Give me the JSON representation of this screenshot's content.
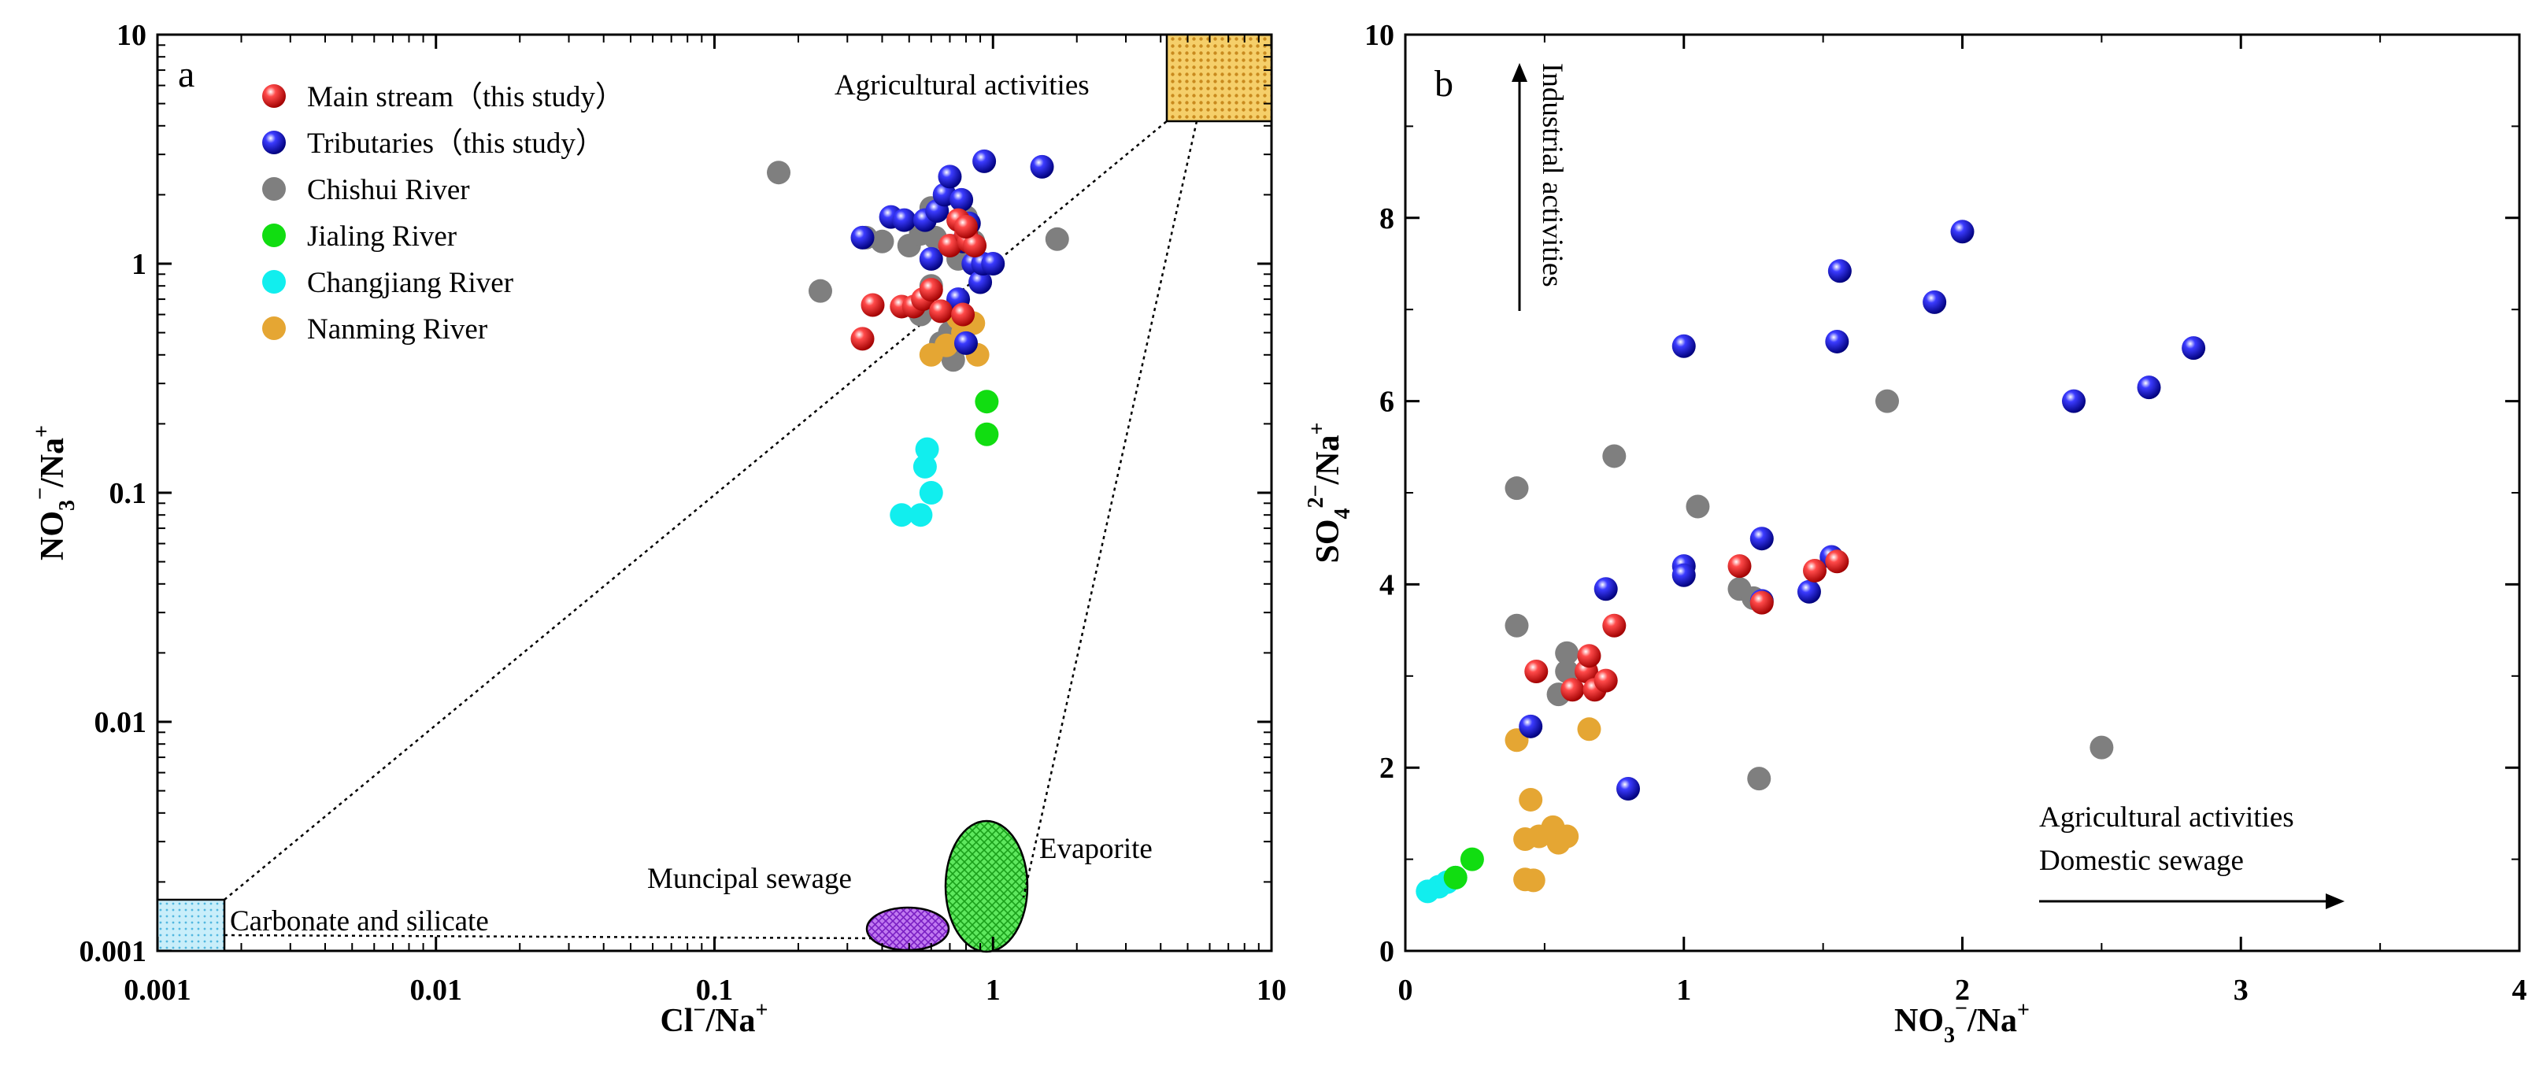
{
  "chart_data": [
    {
      "type": "scatter",
      "panel_label": "a",
      "xscale": "log",
      "yscale": "log",
      "xlim": [
        0.001,
        10
      ],
      "ylim": [
        0.001,
        10
      ],
      "xlabel": {
        "main": "Cl",
        "sup": "−",
        "sep": "/Na",
        "sup2": "+"
      },
      "ylabel": {
        "main": "NO",
        "sub": "3",
        "sup": "−",
        "sep": "/Na",
        "sup2": "+"
      },
      "xticks": [
        {
          "v": 0.001,
          "label": "0.001"
        },
        {
          "v": 0.01,
          "label": "0.01"
        },
        {
          "v": 0.1,
          "label": "0.1"
        },
        {
          "v": 1,
          "label": "1"
        },
        {
          "v": 10,
          "label": "10"
        }
      ],
      "yticks": [
        {
          "v": 0.001,
          "label": "0.001"
        },
        {
          "v": 0.01,
          "label": "0.01"
        },
        {
          "v": 0.1,
          "label": "0.1"
        },
        {
          "v": 1,
          "label": "1"
        },
        {
          "v": 10,
          "label": "10"
        }
      ],
      "legend": [
        {
          "key": "main",
          "label": "Main stream（this study）",
          "color": "#ee1111"
        },
        {
          "key": "trib",
          "label": "Tributaries（this study）",
          "color": "#1515d8"
        },
        {
          "key": "chishui",
          "label": "Chishui River",
          "color": "#7f7f7f"
        },
        {
          "key": "jialing",
          "label": "Jialing River",
          "color": "#11dd11"
        },
        {
          "key": "changjiang",
          "label": "Changjiang River",
          "color": "#11eeee"
        },
        {
          "key": "nanming",
          "label": "Nanming River",
          "color": "#e5a633"
        }
      ],
      "end_members": [
        {
          "label": "Agricultural activities",
          "color": "#f0c050"
        },
        {
          "label": "Carbonate and silicate",
          "color": "#aee4f5"
        },
        {
          "label": "Muncipal sewage",
          "color": "#a044e8"
        },
        {
          "label": "Evaporite",
          "color": "#33dd33"
        }
      ],
      "series": [
        {
          "key": "chishui",
          "points": [
            [
              0.17,
              2.5
            ],
            [
              0.24,
              0.76
            ],
            [
              0.35,
              1.3
            ],
            [
              0.4,
              1.25
            ],
            [
              0.5,
              1.2
            ],
            [
              0.55,
              1.35
            ],
            [
              0.6,
              1.75
            ],
            [
              0.62,
              1.3
            ],
            [
              0.6,
              0.8
            ],
            [
              0.55,
              0.6
            ],
            [
              0.7,
              0.5
            ],
            [
              0.72,
              0.38
            ],
            [
              0.65,
              0.45
            ],
            [
              0.75,
              1.05
            ],
            [
              0.8,
              1.6
            ],
            [
              0.85,
              1.25
            ],
            [
              1.7,
              1.28
            ]
          ]
        },
        {
          "key": "nanming",
          "points": [
            [
              0.6,
              0.4
            ],
            [
              0.68,
              0.44
            ],
            [
              0.78,
              0.5
            ],
            [
              0.85,
              0.55
            ],
            [
              0.75,
              0.58
            ],
            [
              0.88,
              0.4
            ]
          ]
        },
        {
          "key": "changjiang",
          "points": [
            [
              0.47,
              0.08
            ],
            [
              0.55,
              0.08
            ],
            [
              0.6,
              0.1
            ],
            [
              0.57,
              0.13
            ],
            [
              0.58,
              0.155
            ]
          ]
        },
        {
          "key": "jialing",
          "points": [
            [
              0.95,
              0.25
            ],
            [
              0.95,
              0.18
            ]
          ]
        },
        {
          "key": "trib",
          "points": [
            [
              0.34,
              1.3
            ],
            [
              0.43,
              1.6
            ],
            [
              0.48,
              1.55
            ],
            [
              0.57,
              1.55
            ],
            [
              0.6,
              1.05
            ],
            [
              0.63,
              1.7
            ],
            [
              0.67,
              2.0
            ],
            [
              0.7,
              2.4
            ],
            [
              0.77,
              1.9
            ],
            [
              0.82,
              1.5
            ],
            [
              0.78,
              1.25
            ],
            [
              0.85,
              1.0
            ],
            [
              0.9,
              0.83
            ],
            [
              0.92,
              1.0
            ],
            [
              1.0,
              1.0
            ],
            [
              0.93,
              2.8
            ],
            [
              1.5,
              2.65
            ],
            [
              0.8,
              0.45
            ],
            [
              0.75,
              0.7
            ]
          ]
        },
        {
          "key": "main",
          "points": [
            [
              0.34,
              0.47
            ],
            [
              0.37,
              0.66
            ],
            [
              0.47,
              0.65
            ],
            [
              0.52,
              0.65
            ],
            [
              0.56,
              0.7
            ],
            [
              0.6,
              0.77
            ],
            [
              0.65,
              0.62
            ],
            [
              0.7,
              1.2
            ],
            [
              0.75,
              1.55
            ],
            [
              0.8,
              1.35
            ],
            [
              0.82,
              1.25
            ],
            [
              0.86,
              1.2
            ],
            [
              0.78,
              0.6
            ],
            [
              0.8,
              1.45
            ]
          ]
        }
      ]
    },
    {
      "type": "scatter",
      "panel_label": "b",
      "xscale": "linear",
      "yscale": "linear",
      "xlim": [
        0,
        4
      ],
      "ylim": [
        0,
        10
      ],
      "xlabel": {
        "main": "NO",
        "sub": "3",
        "sup": "−",
        "sep": "/Na",
        "sup2": "+"
      },
      "ylabel": {
        "main": "SO",
        "sub": "4",
        "sup": "2−",
        "sep": "/Na",
        "sup2": "+"
      },
      "xticks": [
        {
          "v": 0,
          "label": "0"
        },
        {
          "v": 1,
          "label": "1"
        },
        {
          "v": 2,
          "label": "2"
        },
        {
          "v": 3,
          "label": "3"
        },
        {
          "v": 4,
          "label": "4"
        }
      ],
      "yticks": [
        {
          "v": 0,
          "label": "0"
        },
        {
          "v": 2,
          "label": "2"
        },
        {
          "v": 4,
          "label": "4"
        },
        {
          "v": 6,
          "label": "6"
        },
        {
          "v": 8,
          "label": "8"
        },
        {
          "v": 10,
          "label": "10"
        }
      ],
      "annotations": {
        "vertical": "Industrial activities",
        "horizontal_line1": "Agricultural activities",
        "horizontal_line2": "Domestic sewage"
      },
      "series": [
        {
          "key": "chishui",
          "points": [
            [
              0.4,
              5.05
            ],
            [
              0.75,
              5.4
            ],
            [
              1.05,
              4.85
            ],
            [
              1.73,
              6.0
            ],
            [
              2.5,
              2.22
            ],
            [
              0.4,
              3.55
            ],
            [
              0.58,
              3.25
            ],
            [
              0.58,
              3.05
            ],
            [
              0.55,
              2.8
            ],
            [
              1.2,
              3.95
            ],
            [
              1.27,
              1.88
            ],
            [
              1.25,
              3.85
            ]
          ]
        },
        {
          "key": "nanming",
          "points": [
            [
              0.4,
              2.3
            ],
            [
              0.66,
              2.42
            ],
            [
              0.45,
              1.65
            ],
            [
              0.43,
              1.22
            ],
            [
              0.48,
              1.25
            ],
            [
              0.53,
              1.35
            ],
            [
              0.55,
              1.18
            ],
            [
              0.58,
              1.25
            ],
            [
              0.43,
              0.78
            ],
            [
              0.46,
              0.77
            ]
          ]
        },
        {
          "key": "changjiang",
          "points": [
            [
              0.08,
              0.65
            ],
            [
              0.12,
              0.7
            ],
            [
              0.15,
              0.75
            ],
            [
              0.18,
              0.8
            ]
          ]
        },
        {
          "key": "jialing",
          "points": [
            [
              0.24,
              1.0
            ],
            [
              0.18,
              0.8
            ]
          ]
        },
        {
          "key": "trib",
          "points": [
            [
              1.0,
              6.6
            ],
            [
              1.56,
              7.42
            ],
            [
              2.0,
              7.85
            ],
            [
              1.55,
              6.65
            ],
            [
              1.9,
              7.08
            ],
            [
              2.4,
              6.0
            ],
            [
              2.67,
              6.15
            ],
            [
              2.83,
              6.58
            ],
            [
              1.0,
              4.2
            ],
            [
              1.0,
              4.1
            ],
            [
              1.28,
              4.5
            ],
            [
              1.53,
              4.3
            ],
            [
              1.45,
              3.92
            ],
            [
              1.28,
              3.82
            ],
            [
              0.72,
              3.95
            ],
            [
              0.45,
              2.45
            ],
            [
              0.8,
              1.77
            ]
          ]
        },
        {
          "key": "main",
          "points": [
            [
              0.47,
              3.05
            ],
            [
              0.6,
              2.85
            ],
            [
              0.65,
              3.05
            ],
            [
              0.66,
              3.22
            ],
            [
              0.68,
              2.85
            ],
            [
              0.72,
              2.95
            ],
            [
              0.75,
              3.55
            ],
            [
              1.2,
              4.2
            ],
            [
              1.28,
              3.8
            ],
            [
              1.47,
              4.15
            ],
            [
              1.55,
              4.25
            ]
          ]
        }
      ]
    }
  ]
}
